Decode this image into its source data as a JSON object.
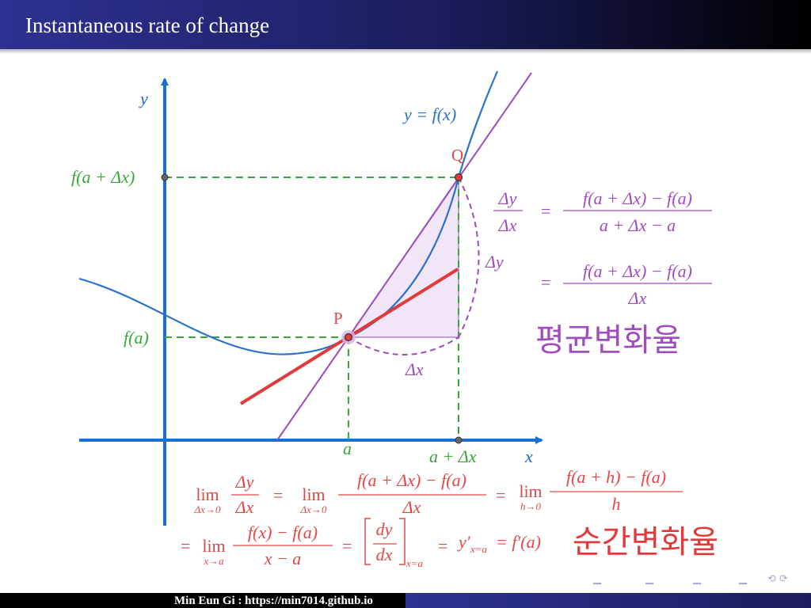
{
  "slide": {
    "title": "Instantaneous rate of change"
  },
  "footer": {
    "author_url": "Min Eun Gi : https://min7014.github.io"
  },
  "colors": {
    "curve": "#2a72c9",
    "secant": "#9b4dba",
    "tangent": "#e03a3a",
    "guide": "#3aa63a",
    "axis": "#1a6fd0",
    "fill": "#efe4f5",
    "label_red": "#e04848",
    "label_purple": "#a04bc0"
  },
  "diagram": {
    "axis_x": "x",
    "axis_y": "y",
    "curve_label": "y = f(x)",
    "point_P": "P",
    "point_Q": "Q",
    "ylabel_fa": "f(a)",
    "ylabel_fadx": "f(a + Δx)",
    "xlabel_a": "a",
    "xlabel_adx": "a + Δx",
    "delta_x": "Δx",
    "delta_y": "Δy"
  },
  "avg_rate": {
    "lhs_num": "Δy",
    "lhs_den": "Δx",
    "eq": "=",
    "frac1_num": "f(a + Δx) − f(a)",
    "frac1_den": "a + Δx − a",
    "frac2_num": "f(a + Δx) − f(a)",
    "frac2_den": "Δx",
    "korean": "평균변화율"
  },
  "inst_rate": {
    "lim": "lim",
    "lim1_sub": "Δx→0",
    "f1_num": "Δy",
    "f1_den": "Δx",
    "lim2_sub": "Δx→0",
    "f2_num": "f(a + Δx) − f(a)",
    "f2_den": "Δx",
    "lim3_sub": "h→0",
    "f3_num": "f(a + h) − f(a)",
    "f3_den": "h",
    "lim4_sub": "x→a",
    "f4_num": "f(x) − f(a)",
    "f4_den": "x − a",
    "f5_num": "dy",
    "f5_den": "dx",
    "bracket_sub": "x=a",
    "yprime": "y′",
    "yprime_sub": "x=a",
    "fprime": "= f′(a)",
    "korean": "순간변화율"
  }
}
